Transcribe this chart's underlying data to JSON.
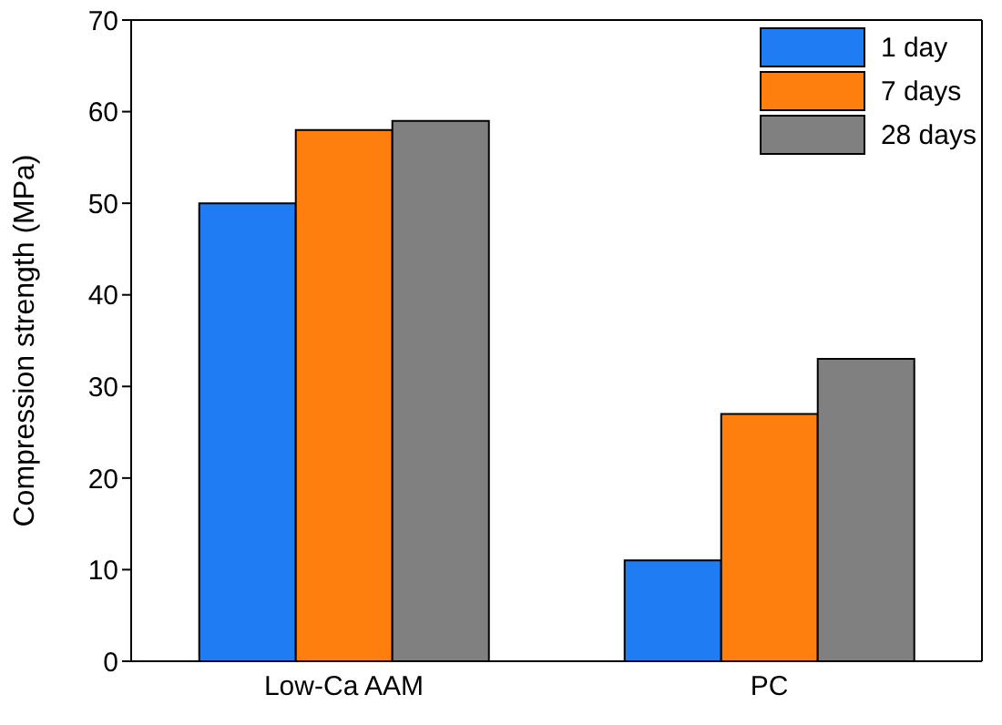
{
  "chart_data": {
    "type": "bar",
    "ylabel": "Compression strength (MPa)",
    "categories": [
      "Low-Ca AAM",
      "PC"
    ],
    "series": [
      {
        "name": "1 day",
        "color": "#1f7cf2",
        "values": [
          50,
          11
        ]
      },
      {
        "name": "7 days",
        "color": "#ff7f0e",
        "values": [
          58,
          27
        ]
      },
      {
        "name": "28 days",
        "color": "#808080",
        "values": [
          59,
          33
        ]
      }
    ],
    "ylim": [
      0,
      70
    ],
    "yticks": [
      0,
      10,
      20,
      30,
      40,
      50,
      60,
      70
    ],
    "legend": "top right"
  }
}
